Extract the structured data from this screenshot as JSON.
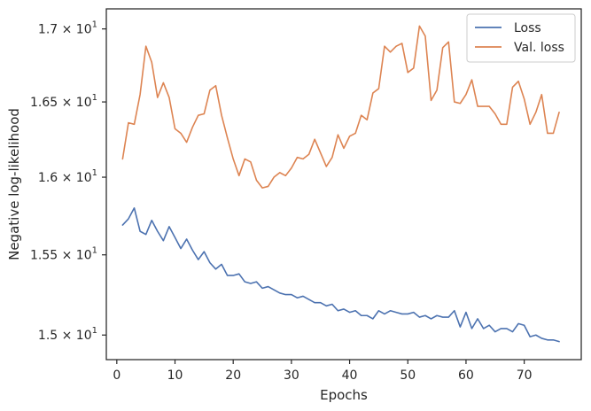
{
  "chart_data": {
    "type": "line",
    "title": "",
    "xlabel": "Epochs",
    "ylabel": "Negative log-likelihood",
    "xlim": [
      -1.8,
      79.8
    ],
    "ylim": [
      14.85,
      17.14
    ],
    "y_scale": "log",
    "grid": false,
    "legend_position": "top-right",
    "x_ticks": [
      0,
      10,
      20,
      30,
      40,
      50,
      60,
      70
    ],
    "x_tick_labels": [
      "0",
      "10",
      "20",
      "30",
      "40",
      "50",
      "60",
      "70"
    ],
    "y_ticks": [
      15.0,
      15.5,
      16.0,
      16.5,
      17.0
    ],
    "y_tick_labels": [
      {
        "base": "1.5",
        "times": "×",
        "power": "10",
        "exp": "1"
      },
      {
        "base": "1.55",
        "times": "×",
        "power": "10",
        "exp": "1"
      },
      {
        "base": "1.6",
        "times": "×",
        "power": "10",
        "exp": "1"
      },
      {
        "base": "1.65",
        "times": "×",
        "power": "10",
        "exp": "1"
      },
      {
        "base": "1.7",
        "times": "×",
        "power": "10",
        "exp": "1"
      }
    ],
    "x": [
      1,
      2,
      3,
      4,
      5,
      6,
      7,
      8,
      9,
      10,
      11,
      12,
      13,
      14,
      15,
      16,
      17,
      18,
      19,
      20,
      21,
      22,
      23,
      24,
      25,
      26,
      27,
      28,
      29,
      30,
      31,
      32,
      33,
      34,
      35,
      36,
      37,
      38,
      39,
      40,
      41,
      42,
      43,
      44,
      45,
      46,
      47,
      48,
      49,
      50,
      51,
      52,
      53,
      54,
      55,
      56,
      57,
      58,
      59,
      60,
      61,
      62,
      63,
      64,
      65,
      66,
      67,
      68,
      69,
      70,
      71,
      72,
      73,
      74,
      75,
      76
    ],
    "series": [
      {
        "name": "Loss",
        "color": "#4c72b0",
        "values": [
          15.69,
          15.73,
          15.8,
          15.65,
          15.63,
          15.72,
          15.65,
          15.59,
          15.68,
          15.61,
          15.54,
          15.6,
          15.53,
          15.47,
          15.52,
          15.45,
          15.41,
          15.44,
          15.37,
          15.37,
          15.38,
          15.33,
          15.32,
          15.33,
          15.29,
          15.3,
          15.28,
          15.26,
          15.25,
          15.25,
          15.23,
          15.24,
          15.22,
          15.2,
          15.2,
          15.18,
          15.19,
          15.15,
          15.16,
          15.14,
          15.15,
          15.12,
          15.12,
          15.1,
          15.15,
          15.13,
          15.15,
          15.14,
          15.13,
          15.13,
          15.14,
          15.11,
          15.12,
          15.1,
          15.12,
          15.11,
          15.11,
          15.15,
          15.05,
          15.14,
          15.04,
          15.1,
          15.04,
          15.06,
          15.02,
          15.04,
          15.04,
          15.02,
          15.07,
          15.06,
          14.99,
          15.0,
          14.98,
          14.97,
          14.97,
          14.96
        ]
      },
      {
        "name": "Val. loss",
        "color": "#dd8452",
        "values": [
          16.12,
          16.36,
          16.35,
          16.55,
          16.88,
          16.77,
          16.53,
          16.63,
          16.53,
          16.32,
          16.29,
          16.23,
          16.33,
          16.41,
          16.42,
          16.58,
          16.61,
          16.41,
          16.26,
          16.12,
          16.01,
          16.12,
          16.1,
          15.98,
          15.93,
          15.94,
          16.0,
          16.03,
          16.01,
          16.06,
          16.13,
          16.12,
          16.15,
          16.25,
          16.16,
          16.07,
          16.13,
          16.28,
          16.19,
          16.27,
          16.29,
          16.41,
          16.38,
          16.56,
          16.59,
          16.88,
          16.84,
          16.88,
          16.9,
          16.7,
          16.73,
          17.02,
          16.95,
          16.51,
          16.58,
          16.87,
          16.91,
          16.5,
          16.49,
          16.55,
          16.65,
          16.47,
          16.47,
          16.47,
          16.42,
          16.35,
          16.35,
          16.6,
          16.64,
          16.52,
          16.35,
          16.43,
          16.55,
          16.29,
          16.29,
          16.43
        ]
      }
    ]
  }
}
